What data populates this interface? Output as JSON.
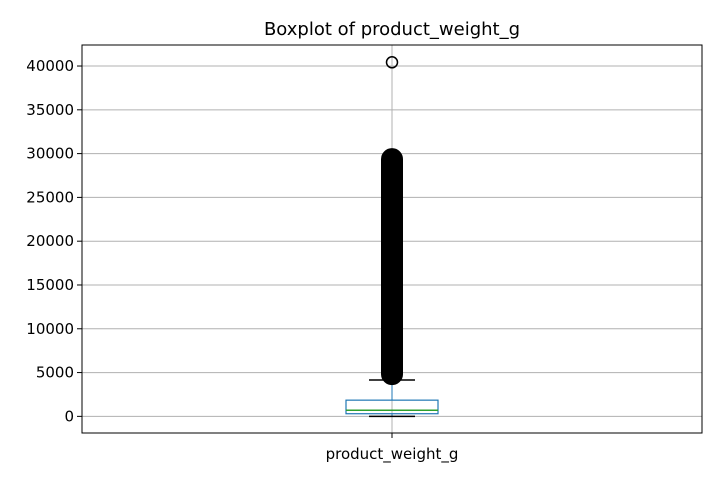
{
  "chart_data": {
    "type": "boxplot",
    "title": "Boxplot of product_weight_g",
    "xlabel": "",
    "ylabel": "",
    "category": "product_weight_g",
    "ylim": [
      -1900,
      42400
    ],
    "yticks": [
      0,
      5000,
      10000,
      15000,
      20000,
      25000,
      30000,
      35000,
      40000
    ],
    "ytick_labels": [
      "0",
      "5000",
      "10000",
      "15000",
      "20000",
      "25000",
      "30000",
      "35000",
      "40000"
    ],
    "grid": true,
    "box": {
      "whisker_low": 0,
      "q1": 300,
      "median": 700,
      "q3": 1850,
      "whisker_high": 4150
    },
    "outlier_range": [
      4200,
      30000
    ],
    "outliers": [
      40425
    ],
    "colors": {
      "box": "#1f77b4",
      "median": "#2ca02c",
      "grid": "#b0b0b0",
      "outlier": "#000000"
    }
  }
}
